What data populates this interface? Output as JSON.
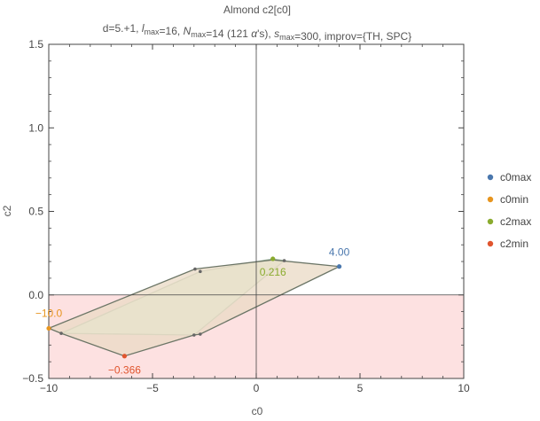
{
  "chart_data": {
    "type": "scatter",
    "title": "Almond c2[c0]",
    "subtitle_parts": [
      {
        "t": "d=5.+1, "
      },
      {
        "t": "l",
        "i": true
      },
      {
        "t": "max",
        "sub": true
      },
      {
        "t": "=16, "
      },
      {
        "t": "N",
        "i": true
      },
      {
        "t": "max",
        "sub": true
      },
      {
        "t": "=14 (121 "
      },
      {
        "t": "α",
        "i": true
      },
      {
        "t": "'s), "
      },
      {
        "t": "s",
        "i": true
      },
      {
        "t": "max",
        "sub": true
      },
      {
        "t": "=300, improv={TH, SPC}"
      }
    ],
    "xlabel": "c0",
    "ylabel": "c2",
    "xlim": [
      -10,
      10
    ],
    "ylim": [
      -0.5,
      1.5
    ],
    "xticks": [
      -10,
      -5,
      0,
      5,
      10
    ],
    "xtick_labels": [
      "−10",
      "−5",
      "0",
      "5",
      "10"
    ],
    "yticks": [
      -0.5,
      0.0,
      0.5,
      1.0,
      1.5
    ],
    "ytick_labels": [
      "−0.5",
      "0.0",
      "0.5",
      "1.0",
      "1.5"
    ],
    "grid": false,
    "legend_position": "right",
    "colors": {
      "c0max": "#4a77ad",
      "c0min": "#e7951f",
      "c2max": "#8aab2e",
      "c2min": "#e0552e",
      "outer_polygon_fill": "#ead9c4",
      "outer_polygon_edge": "#6b7566",
      "inner_polygon_fill": "#e6fbe4",
      "inner_polygon_edge": "#b3c9b3",
      "negative_region": "#fde1e1"
    },
    "outer_polygon": [
      [
        4.0,
        0.17
      ],
      [
        0.8,
        0.21
      ],
      [
        -2.95,
        0.155
      ],
      [
        -10.0,
        -0.2
      ],
      [
        -9.4,
        -0.23
      ],
      [
        -6.35,
        -0.366
      ],
      [
        -3.0,
        -0.24
      ],
      [
        -2.7,
        -0.235
      ]
    ],
    "inner_polygon": [
      [
        1.35,
        0.205
      ],
      [
        0.8,
        0.216
      ],
      [
        -2.7,
        0.14
      ],
      [
        -9.4,
        -0.23
      ],
      [
        -3.0,
        -0.24
      ]
    ],
    "vertices": [
      [
        -2.95,
        0.155
      ],
      [
        -9.4,
        -0.23
      ],
      [
        -3.0,
        -0.24
      ],
      [
        -2.7,
        -0.235
      ],
      [
        1.35,
        0.205
      ],
      [
        -2.7,
        0.14
      ]
    ],
    "series": [
      {
        "name": "c0max",
        "x": [
          4.0
        ],
        "y": [
          0.17
        ],
        "label": "4.00"
      },
      {
        "name": "c0min",
        "x": [
          -10.0
        ],
        "y": [
          -0.2
        ],
        "label": "−10.0"
      },
      {
        "name": "c2max",
        "x": [
          0.8
        ],
        "y": [
          0.216
        ],
        "label": "0.216"
      },
      {
        "name": "c2min",
        "x": [
          -6.35
        ],
        "y": [
          -0.366
        ],
        "label": "−0.366"
      }
    ]
  }
}
